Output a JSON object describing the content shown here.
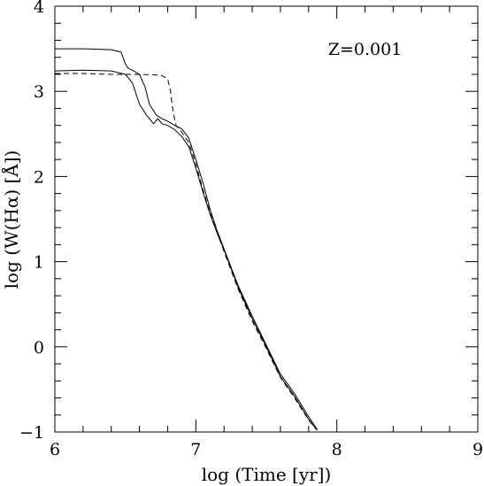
{
  "chart_data": {
    "type": "line",
    "title": "",
    "xlabel": "log (Time [yr])",
    "ylabel": "log (W(Hα) [Å])",
    "xlim": [
      6,
      9
    ],
    "ylim": [
      -1,
      4
    ],
    "xticks": [
      "6",
      "7",
      "8",
      "9"
    ],
    "yticks": [
      "−1",
      "0",
      "1",
      "2",
      "3",
      "4"
    ],
    "grid": false,
    "legend": "none",
    "annotations": [
      {
        "text": "Z=0.001",
        "x": 8.2,
        "y": 3.5
      }
    ],
    "series": [
      {
        "style": "solid",
        "x": [
          6.0,
          6.2,
          6.4,
          6.47,
          6.5,
          6.52,
          6.56,
          6.6,
          6.64,
          6.67,
          6.72,
          6.76,
          6.8,
          6.85,
          6.9,
          6.95,
          7.0,
          7.05,
          7.1,
          7.15,
          7.2,
          7.3,
          7.4,
          7.5,
          7.6,
          7.7,
          7.8,
          7.86
        ],
        "y": [
          3.5,
          3.5,
          3.49,
          3.46,
          3.32,
          3.27,
          3.24,
          3.2,
          3.05,
          2.85,
          2.72,
          2.68,
          2.65,
          2.6,
          2.56,
          2.45,
          2.2,
          1.93,
          1.62,
          1.37,
          1.15,
          0.72,
          0.36,
          0.02,
          -0.32,
          -0.55,
          -0.82,
          -0.97
        ]
      },
      {
        "style": "solid",
        "x": [
          6.0,
          6.2,
          6.4,
          6.5,
          6.55,
          6.6,
          6.65,
          6.7,
          6.73,
          6.76,
          6.8,
          6.85,
          6.9,
          6.95,
          7.0,
          7.05,
          7.1,
          7.15,
          7.2,
          7.3,
          7.4,
          7.5,
          7.6,
          7.7,
          7.8,
          7.86
        ],
        "y": [
          3.24,
          3.25,
          3.24,
          3.2,
          3.1,
          2.85,
          2.72,
          2.62,
          2.68,
          2.62,
          2.6,
          2.55,
          2.47,
          2.35,
          2.1,
          1.82,
          1.56,
          1.34,
          1.14,
          0.7,
          0.33,
          0.0,
          -0.35,
          -0.58,
          -0.85,
          -0.98
        ]
      },
      {
        "style": "dashed",
        "x": [
          6.0,
          6.2,
          6.4,
          6.6,
          6.75,
          6.8,
          6.82,
          6.84,
          6.86,
          6.9,
          6.95,
          7.0,
          7.05,
          7.1,
          7.15,
          7.2,
          7.3,
          7.4,
          7.5,
          7.6,
          7.7,
          7.8,
          7.86
        ],
        "y": [
          3.21,
          3.21,
          3.2,
          3.2,
          3.19,
          3.15,
          3.0,
          2.75,
          2.6,
          2.52,
          2.4,
          2.15,
          1.85,
          1.58,
          1.35,
          1.12,
          0.68,
          0.3,
          -0.02,
          -0.36,
          -0.6,
          -0.86,
          -0.98
        ]
      }
    ]
  }
}
